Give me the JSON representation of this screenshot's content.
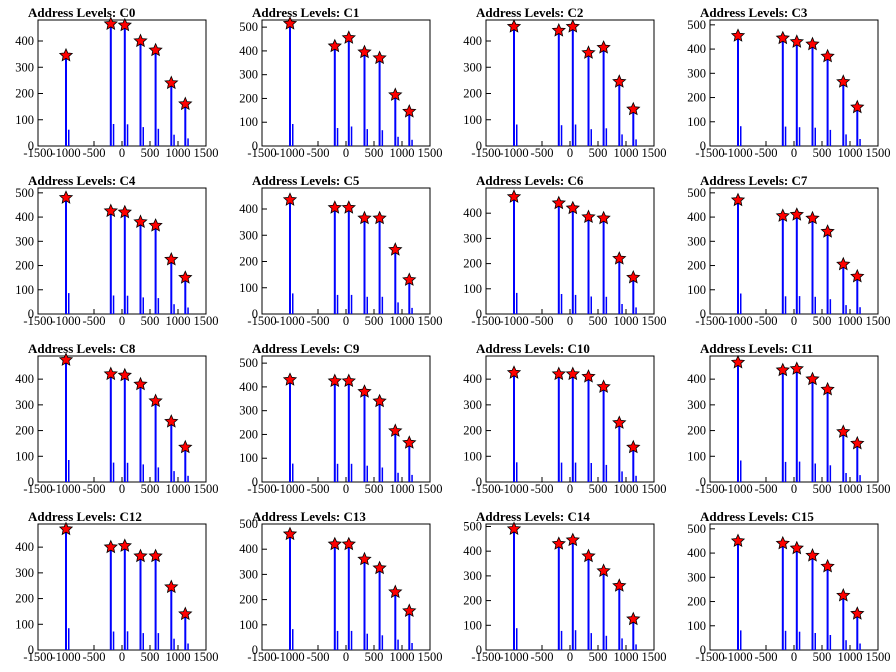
{
  "figure": {
    "x_ticks": [
      -1500,
      -1000,
      -500,
      0,
      500,
      1000,
      1500
    ],
    "colors": {
      "bar": "#0000ff",
      "marker": "#ff0000",
      "axis": "#000000"
    }
  },
  "chart_data": [
    {
      "type": "bar",
      "title": "Address Levels: C0",
      "ylim": [
        0,
        480
      ],
      "y_ticks": [
        0,
        100,
        200,
        300,
        400
      ],
      "xlim": [
        -1500,
        1500
      ],
      "peaks": [
        {
          "x": -1000,
          "y": 345
        },
        {
          "x": -200,
          "y": 465
        },
        {
          "x": 50,
          "y": 460
        },
        {
          "x": 330,
          "y": 400
        },
        {
          "x": 600,
          "y": 365
        },
        {
          "x": 880,
          "y": 240
        },
        {
          "x": 1130,
          "y": 160
        }
      ]
    },
    {
      "type": "bar",
      "title": "Address Levels: C1",
      "ylim": [
        0,
        530
      ],
      "y_ticks": [
        0,
        100,
        200,
        300,
        400,
        500
      ],
      "xlim": [
        -1500,
        1500
      ],
      "peaks": [
        {
          "x": -1000,
          "y": 515
        },
        {
          "x": -200,
          "y": 420
        },
        {
          "x": 50,
          "y": 455
        },
        {
          "x": 330,
          "y": 395
        },
        {
          "x": 600,
          "y": 370
        },
        {
          "x": 880,
          "y": 215
        },
        {
          "x": 1130,
          "y": 145
        }
      ]
    },
    {
      "type": "bar",
      "title": "Address Levels: C2",
      "ylim": [
        0,
        480
      ],
      "y_ticks": [
        0,
        100,
        200,
        300,
        400
      ],
      "xlim": [
        -1500,
        1500
      ],
      "peaks": [
        {
          "x": -1000,
          "y": 455
        },
        {
          "x": -200,
          "y": 440
        },
        {
          "x": 50,
          "y": 455
        },
        {
          "x": 330,
          "y": 355
        },
        {
          "x": 600,
          "y": 375
        },
        {
          "x": 880,
          "y": 245
        },
        {
          "x": 1130,
          "y": 140
        }
      ]
    },
    {
      "type": "bar",
      "title": "Address Levels: C3",
      "ylim": [
        0,
        520
      ],
      "y_ticks": [
        0,
        100,
        200,
        300,
        400,
        500
      ],
      "xlim": [
        -1500,
        1500
      ],
      "peaks": [
        {
          "x": -1000,
          "y": 455
        },
        {
          "x": -200,
          "y": 445
        },
        {
          "x": 50,
          "y": 430
        },
        {
          "x": 330,
          "y": 420
        },
        {
          "x": 600,
          "y": 370
        },
        {
          "x": 880,
          "y": 265
        },
        {
          "x": 1130,
          "y": 160
        }
      ]
    },
    {
      "type": "bar",
      "title": "Address Levels: C4",
      "ylim": [
        0,
        520
      ],
      "y_ticks": [
        0,
        100,
        200,
        300,
        400,
        500
      ],
      "xlim": [
        -1500,
        1500
      ],
      "peaks": [
        {
          "x": -1000,
          "y": 480
        },
        {
          "x": -200,
          "y": 425
        },
        {
          "x": 50,
          "y": 420
        },
        {
          "x": 330,
          "y": 380
        },
        {
          "x": 600,
          "y": 365
        },
        {
          "x": 880,
          "y": 225
        },
        {
          "x": 1130,
          "y": 150
        }
      ]
    },
    {
      "type": "bar",
      "title": "Address Levels: C5",
      "ylim": [
        0,
        480
      ],
      "y_ticks": [
        0,
        100,
        200,
        300,
        400
      ],
      "xlim": [
        -1500,
        1500
      ],
      "peaks": [
        {
          "x": -1000,
          "y": 435
        },
        {
          "x": -200,
          "y": 405
        },
        {
          "x": 50,
          "y": 405
        },
        {
          "x": 330,
          "y": 365
        },
        {
          "x": 600,
          "y": 365
        },
        {
          "x": 880,
          "y": 245
        },
        {
          "x": 1130,
          "y": 130
        }
      ]
    },
    {
      "type": "bar",
      "title": "Address Levels: C6",
      "ylim": [
        0,
        500
      ],
      "y_ticks": [
        0,
        100,
        200,
        300,
        400
      ],
      "xlim": [
        -1500,
        1500
      ],
      "peaks": [
        {
          "x": -1000,
          "y": 465
        },
        {
          "x": -200,
          "y": 440
        },
        {
          "x": 50,
          "y": 420
        },
        {
          "x": 330,
          "y": 385
        },
        {
          "x": 600,
          "y": 380
        },
        {
          "x": 880,
          "y": 220
        },
        {
          "x": 1130,
          "y": 145
        }
      ]
    },
    {
      "type": "bar",
      "title": "Address Levels: C7",
      "ylim": [
        0,
        520
      ],
      "y_ticks": [
        0,
        100,
        200,
        300,
        400,
        500
      ],
      "xlim": [
        -1500,
        1500
      ],
      "peaks": [
        {
          "x": -1000,
          "y": 470
        },
        {
          "x": -200,
          "y": 405
        },
        {
          "x": 50,
          "y": 410
        },
        {
          "x": 330,
          "y": 395
        },
        {
          "x": 600,
          "y": 340
        },
        {
          "x": 880,
          "y": 205
        },
        {
          "x": 1130,
          "y": 155
        }
      ]
    },
    {
      "type": "bar",
      "title": "Address Levels: C8",
      "ylim": [
        0,
        490
      ],
      "y_ticks": [
        0,
        100,
        200,
        300,
        400
      ],
      "xlim": [
        -1500,
        1500
      ],
      "peaks": [
        {
          "x": -1000,
          "y": 475
        },
        {
          "x": -200,
          "y": 420
        },
        {
          "x": 50,
          "y": 415
        },
        {
          "x": 330,
          "y": 380
        },
        {
          "x": 600,
          "y": 315
        },
        {
          "x": 880,
          "y": 235
        },
        {
          "x": 1130,
          "y": 135
        }
      ]
    },
    {
      "type": "bar",
      "title": "Address Levels: C9",
      "ylim": [
        0,
        530
      ],
      "y_ticks": [
        0,
        100,
        200,
        300,
        400,
        500
      ],
      "xlim": [
        -1500,
        1500
      ],
      "peaks": [
        {
          "x": -1000,
          "y": 430
        },
        {
          "x": -200,
          "y": 425
        },
        {
          "x": 50,
          "y": 425
        },
        {
          "x": 330,
          "y": 380
        },
        {
          "x": 600,
          "y": 340
        },
        {
          "x": 880,
          "y": 215
        },
        {
          "x": 1130,
          "y": 165
        }
      ]
    },
    {
      "type": "bar",
      "title": "Address Levels: C10",
      "ylim": [
        0,
        490
      ],
      "y_ticks": [
        0,
        100,
        200,
        300,
        400
      ],
      "xlim": [
        -1500,
        1500
      ],
      "peaks": [
        {
          "x": -1000,
          "y": 425
        },
        {
          "x": -200,
          "y": 420
        },
        {
          "x": 50,
          "y": 420
        },
        {
          "x": 330,
          "y": 410
        },
        {
          "x": 600,
          "y": 370
        },
        {
          "x": 880,
          "y": 230
        },
        {
          "x": 1130,
          "y": 135
        }
      ]
    },
    {
      "type": "bar",
      "title": "Address Levels: C11",
      "ylim": [
        0,
        490
      ],
      "y_ticks": [
        0,
        100,
        200,
        300,
        400
      ],
      "xlim": [
        -1500,
        1500
      ],
      "peaks": [
        {
          "x": -1000,
          "y": 465
        },
        {
          "x": -200,
          "y": 435
        },
        {
          "x": 50,
          "y": 440
        },
        {
          "x": 330,
          "y": 400
        },
        {
          "x": 600,
          "y": 360
        },
        {
          "x": 880,
          "y": 195
        },
        {
          "x": 1130,
          "y": 150
        }
      ]
    },
    {
      "type": "bar",
      "title": "Address Levels: C12",
      "ylim": [
        0,
        490
      ],
      "y_ticks": [
        0,
        100,
        200,
        300,
        400
      ],
      "xlim": [
        -1500,
        1500
      ],
      "peaks": [
        {
          "x": -1000,
          "y": 470
        },
        {
          "x": -200,
          "y": 400
        },
        {
          "x": 50,
          "y": 405
        },
        {
          "x": 330,
          "y": 365
        },
        {
          "x": 600,
          "y": 365
        },
        {
          "x": 880,
          "y": 245
        },
        {
          "x": 1130,
          "y": 140
        }
      ]
    },
    {
      "type": "bar",
      "title": "Address Levels: C13",
      "ylim": [
        0,
        500
      ],
      "y_ticks": [
        0,
        100,
        200,
        300,
        400,
        500
      ],
      "xlim": [
        -1500,
        1500
      ],
      "peaks": [
        {
          "x": -1000,
          "y": 460
        },
        {
          "x": -200,
          "y": 420
        },
        {
          "x": 50,
          "y": 420
        },
        {
          "x": 330,
          "y": 360
        },
        {
          "x": 600,
          "y": 325
        },
        {
          "x": 880,
          "y": 230
        },
        {
          "x": 1130,
          "y": 155
        }
      ]
    },
    {
      "type": "bar",
      "title": "Address Levels: C14",
      "ylim": [
        0,
        510
      ],
      "y_ticks": [
        0,
        100,
        200,
        300,
        400,
        500
      ],
      "xlim": [
        -1500,
        1500
      ],
      "peaks": [
        {
          "x": -1000,
          "y": 490
        },
        {
          "x": -200,
          "y": 430
        },
        {
          "x": 50,
          "y": 445
        },
        {
          "x": 330,
          "y": 380
        },
        {
          "x": 600,
          "y": 320
        },
        {
          "x": 880,
          "y": 260
        },
        {
          "x": 1130,
          "y": 125
        }
      ]
    },
    {
      "type": "bar",
      "title": "Address Levels: C15",
      "ylim": [
        0,
        520
      ],
      "y_ticks": [
        0,
        100,
        200,
        300,
        400,
        500
      ],
      "xlim": [
        -1500,
        1500
      ],
      "peaks": [
        {
          "x": -1000,
          "y": 450
        },
        {
          "x": -200,
          "y": 440
        },
        {
          "x": 50,
          "y": 420
        },
        {
          "x": 330,
          "y": 390
        },
        {
          "x": 600,
          "y": 345
        },
        {
          "x": 880,
          "y": 225
        },
        {
          "x": 1130,
          "y": 150
        }
      ]
    }
  ]
}
